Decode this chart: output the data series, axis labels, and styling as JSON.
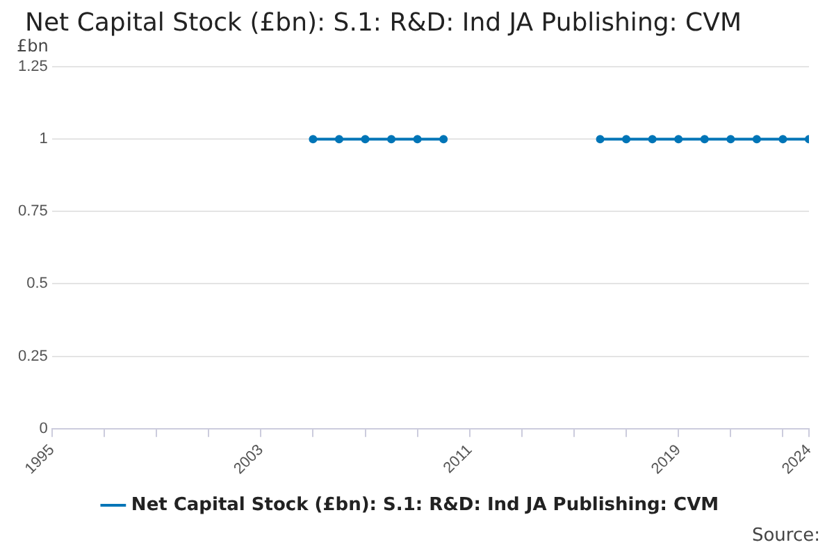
{
  "chart_data": {
    "type": "line",
    "title": "Net Capital Stock (£bn): S.1: R&D: Ind JA Publishing: CVM",
    "ylabel": "£bn",
    "x": [
      2005,
      2006,
      2007,
      2008,
      2009,
      2010,
      2011,
      2012,
      2013,
      2014,
      2015,
      2016,
      2017,
      2018,
      2019,
      2020,
      2021,
      2022,
      2023,
      2024
    ],
    "series": [
      {
        "name": "Net Capital Stock (£bn): S.1: R&D: Ind JA Publishing: CVM",
        "color": "#0075b7",
        "values": [
          1,
          1,
          1,
          1,
          1,
          1,
          null,
          null,
          null,
          null,
          null,
          1,
          1,
          1,
          1,
          1,
          1,
          1,
          1,
          1
        ]
      }
    ],
    "xlim": [
      1995,
      2024
    ],
    "xticks": [
      1995,
      {
        "value": 1997,
        "label": null
      },
      {
        "value": 1999,
        "label": null
      },
      {
        "value": 2001,
        "label": null
      },
      2003,
      {
        "value": 2005,
        "label": null
      },
      {
        "value": 2007,
        "label": null
      },
      {
        "value": 2009,
        "label": null
      },
      2011,
      {
        "value": 2013,
        "label": null
      },
      {
        "value": 2015,
        "label": null
      },
      {
        "value": 2017,
        "label": null
      },
      2019,
      {
        "value": 2021,
        "label": null
      },
      {
        "value": 2023,
        "label": null
      },
      2024
    ],
    "ylim": [
      0,
      1.25
    ],
    "yticks": [
      0,
      0.25,
      0.5,
      0.75,
      1,
      1.25
    ],
    "grid": "y",
    "legend": "bottom",
    "marker": "circle",
    "line_style": "solid",
    "annotations": [
      "Source:"
    ]
  }
}
